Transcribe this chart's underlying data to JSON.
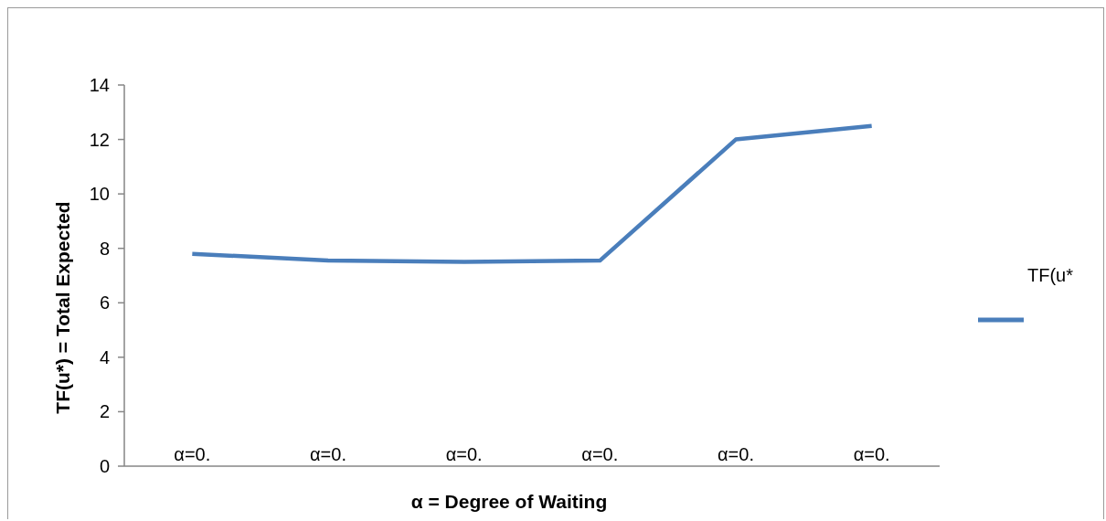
{
  "chart_data": {
    "type": "line",
    "xlabel": "α = Degree of Waiting",
    "ylabel": "TF(u*) = Total Expected",
    "categories": [
      "α=0.",
      "α=0.",
      "α=0.",
      "α=0.",
      "α=0.",
      "α=0."
    ],
    "series": [
      {
        "name": "TF(u*",
        "color": "#4a7ebb",
        "values": [
          7.8,
          7.55,
          7.5,
          7.55,
          12.0,
          12.5
        ]
      }
    ],
    "ylim": [
      0,
      14
    ],
    "yticks": [
      0,
      2,
      4,
      6,
      8,
      10,
      12,
      14
    ],
    "legend": "right",
    "grid": false
  }
}
